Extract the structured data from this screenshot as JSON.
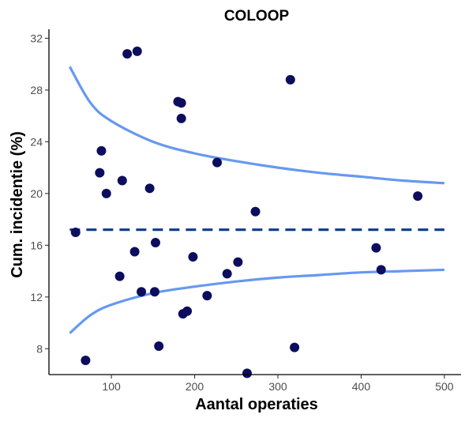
{
  "chart_data": {
    "type": "scatter",
    "title": "COLOOP",
    "xlabel": "Aantal operaties",
    "ylabel": "Cum. incidentie (%)",
    "xlim": [
      25,
      520
    ],
    "ylim": [
      6,
      32.7
    ],
    "x_ticks": [
      100,
      200,
      300,
      400,
      500
    ],
    "y_ticks": [
      8,
      12,
      16,
      20,
      24,
      28,
      32
    ],
    "x_tick_labels": [
      "100",
      "200",
      "300",
      "400",
      "500"
    ],
    "y_tick_labels": [
      "8",
      "12",
      "16",
      "20",
      "24",
      "28",
      "32"
    ],
    "grid": false,
    "legend": "none",
    "colors": {
      "points": "#0d0d5e",
      "funnel_limits": "#6699ee",
      "mean_line": "#0b3a8c"
    },
    "mean_line": {
      "y": 17.2,
      "style": "dashed"
    },
    "funnel": {
      "x": [
        50,
        75,
        100,
        150,
        200,
        250,
        300,
        350,
        400,
        450,
        500
      ],
      "upper": [
        29.8,
        27.0,
        25.6,
        24.0,
        23.1,
        22.5,
        22.0,
        21.6,
        21.3,
        21.0,
        20.8
      ],
      "lower": [
        9.2,
        10.6,
        11.4,
        12.3,
        12.8,
        13.2,
        13.5,
        13.7,
        13.9,
        14.0,
        14.1
      ]
    },
    "points": [
      {
        "x": 57,
        "y": 17.0
      },
      {
        "x": 69,
        "y": 7.1
      },
      {
        "x": 86,
        "y": 21.6
      },
      {
        "x": 88,
        "y": 23.3
      },
      {
        "x": 94,
        "y": 20.0
      },
      {
        "x": 110,
        "y": 13.6
      },
      {
        "x": 113,
        "y": 21.0
      },
      {
        "x": 119,
        "y": 30.8
      },
      {
        "x": 128,
        "y": 15.5
      },
      {
        "x": 131,
        "y": 31.0
      },
      {
        "x": 136,
        "y": 12.4
      },
      {
        "x": 146,
        "y": 20.4
      },
      {
        "x": 152,
        "y": 12.4
      },
      {
        "x": 153,
        "y": 16.2
      },
      {
        "x": 157,
        "y": 8.2
      },
      {
        "x": 180,
        "y": 27.1
      },
      {
        "x": 184,
        "y": 27.0
      },
      {
        "x": 184,
        "y": 25.8
      },
      {
        "x": 186,
        "y": 10.7
      },
      {
        "x": 191,
        "y": 10.9
      },
      {
        "x": 198,
        "y": 15.1
      },
      {
        "x": 215,
        "y": 12.1
      },
      {
        "x": 227,
        "y": 22.4
      },
      {
        "x": 239,
        "y": 13.8
      },
      {
        "x": 252,
        "y": 14.7
      },
      {
        "x": 263,
        "y": 6.1
      },
      {
        "x": 273,
        "y": 18.6
      },
      {
        "x": 315,
        "y": 28.8
      },
      {
        "x": 320,
        "y": 8.1
      },
      {
        "x": 418,
        "y": 15.8
      },
      {
        "x": 424,
        "y": 14.1
      },
      {
        "x": 468,
        "y": 19.8
      }
    ]
  }
}
